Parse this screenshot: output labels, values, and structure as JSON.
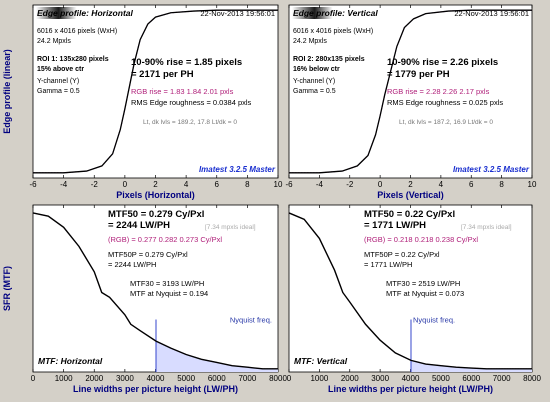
{
  "chart_data": [
    {
      "type": "line",
      "title": "Edge profile: Horizontal",
      "timestamp": "22-Nov-2013 19:56:01",
      "info_lines": [
        "6016 x 4016 pixels (WxH)",
        "24.2 Mpxls"
      ],
      "roi_lines": [
        "ROI 1:  135x280 pixels",
        "15% above ctr"
      ],
      "channel_lines": [
        "Y-channel  (Y)",
        "Gamma = 0.5"
      ],
      "rise_lines": [
        "10-90% rise = 1.85 pixels",
        "= 2171 per PH"
      ],
      "rgb_rise": "RGB rise = 1.83  1.84  2.01 pxls",
      "roughness": "RMS Edge roughness = 0.0384 pxls",
      "levels": "Lt, dk lvls = 189.2, 17.8   Lt/dk = 0",
      "watermark": "Imatest 3.2.5 Master",
      "xlabel": "Pixels (Horizontal)",
      "ylabel": "Edge profile (linear)",
      "xlim": [
        -6,
        10
      ],
      "xticks": [
        "-6",
        "-4",
        "-2",
        "0",
        "2",
        "4",
        "6",
        "8",
        "10"
      ],
      "ylim": [
        0,
        1
      ],
      "x": [
        -6,
        -4,
        -2.5,
        -1.5,
        -0.8,
        -0.3,
        0,
        0.3,
        0.6,
        1.0,
        1.5,
        2.0,
        3.0,
        4.5,
        6,
        8,
        10
      ],
      "y": [
        0.03,
        0.03,
        0.04,
        0.07,
        0.14,
        0.28,
        0.4,
        0.53,
        0.66,
        0.8,
        0.89,
        0.93,
        0.955,
        0.965,
        0.97,
        0.97,
        0.97
      ]
    },
    {
      "type": "line",
      "title": "Edge profile: Vertical",
      "timestamp": "22-Nov-2013 19:56:01",
      "info_lines": [
        "6016 x 4016 pixels (WxH)",
        "24.2 Mpxls"
      ],
      "roi_lines": [
        "ROI 2:  280x135 pixels",
        "16% below ctr"
      ],
      "channel_lines": [
        "Y-channel  (Y)",
        "Gamma = 0.5"
      ],
      "rise_lines": [
        "10-90% rise = 2.26 pixels",
        "= 1779 per PH"
      ],
      "rgb_rise": "RGB rise = 2.28  2.26  2.17 pxls",
      "roughness": "RMS Edge roughness = 0.025 pxls",
      "levels": "Lt, dk lvls = 187.2, 16.9   Lt/dk = 0",
      "watermark": "Imatest 3.2.5 Master",
      "xlabel": "Pixels (Vertical)",
      "ylabel": "",
      "xlim": [
        -6,
        10
      ],
      "xticks": [
        "-6",
        "-4",
        "-2",
        "0",
        "2",
        "4",
        "6",
        "8",
        "10"
      ],
      "ylim": [
        0,
        1
      ],
      "x": [
        -6,
        -4,
        -2.5,
        -1.5,
        -0.8,
        -0.3,
        0,
        0.3,
        0.7,
        1.1,
        1.6,
        2.2,
        3.0,
        4.5,
        6,
        8,
        10
      ],
      "y": [
        0.03,
        0.03,
        0.04,
        0.07,
        0.13,
        0.25,
        0.36,
        0.48,
        0.62,
        0.76,
        0.87,
        0.92,
        0.95,
        0.965,
        0.97,
        0.97,
        0.97
      ]
    },
    {
      "type": "line",
      "title": "MTF: Horizontal",
      "stats_bold": [
        "MTF50 = 0.279 Cy/Pxl",
        "= 2244 LW/PH"
      ],
      "ideal_note": "[7.34 mpxls ideal]",
      "rgb_line": "(RGB) = 0.277  0.282  0.273 Cy/Pxl",
      "stats_lines": [
        "MTF50P = 0.279 Cy/Pxl",
        "= 2244 LW/PH",
        "MTF30 = 3193 LW/PH",
        "MTF at Nyquist = 0.194"
      ],
      "nyquist_label": "Nyquist freq.",
      "nyquist": 4016,
      "xlabel": "Line widths per picture height (LW/PH)",
      "ylabel": "SFR (MTF)",
      "xlim": [
        0,
        8000
      ],
      "ylim": [
        0,
        1.05
      ],
      "xticks": [
        "0",
        "1000",
        "2000",
        "3000",
        "4000",
        "5000",
        "6000",
        "7000",
        "8000"
      ],
      "x": [
        0,
        500,
        1000,
        1500,
        2000,
        2244,
        2500,
        3000,
        3193,
        3500,
        4016,
        4500,
        5000,
        5500,
        6000,
        6500,
        7000,
        7500,
        8000
      ],
      "y": [
        1.0,
        0.98,
        0.91,
        0.79,
        0.63,
        0.5,
        0.47,
        0.36,
        0.3,
        0.26,
        0.194,
        0.15,
        0.11,
        0.08,
        0.06,
        0.04,
        0.03,
        0.02,
        0.02
      ]
    },
    {
      "type": "line",
      "title": "MTF: Vertical",
      "stats_bold": [
        "MTF50 = 0.22 Cy/Pxl",
        "= 1771 LW/PH"
      ],
      "ideal_note": "[7.34 mpxls ideal]",
      "rgb_line": "(RGB) = 0.218  0.218  0.238 Cy/Pxl",
      "stats_lines": [
        "MTF50P = 0.22 Cy/Pxl",
        "= 1771 LW/PH",
        "MTF30 = 2519 LW/PH",
        "MTF at Nyquist = 0.073"
      ],
      "nyquist_label": "Nyquist freq.",
      "nyquist": 4016,
      "xlabel": "Line widths per picture height (LW/PH)",
      "ylabel": "",
      "xlim": [
        0,
        8000
      ],
      "ylim": [
        0,
        1.05
      ],
      "xticks": [
        "0",
        "1000",
        "2000",
        "3000",
        "4000",
        "5000",
        "6000",
        "7000",
        "8000"
      ],
      "x": [
        0,
        500,
        1000,
        1500,
        1771,
        2000,
        2519,
        3000,
        3500,
        4016,
        4500,
        5000,
        5500,
        6000,
        6500,
        7000,
        7500,
        8000
      ],
      "y": [
        1.0,
        0.96,
        0.84,
        0.64,
        0.5,
        0.44,
        0.3,
        0.2,
        0.12,
        0.073,
        0.05,
        0.04,
        0.03,
        0.025,
        0.02,
        0.02,
        0.02,
        0.02
      ]
    }
  ]
}
